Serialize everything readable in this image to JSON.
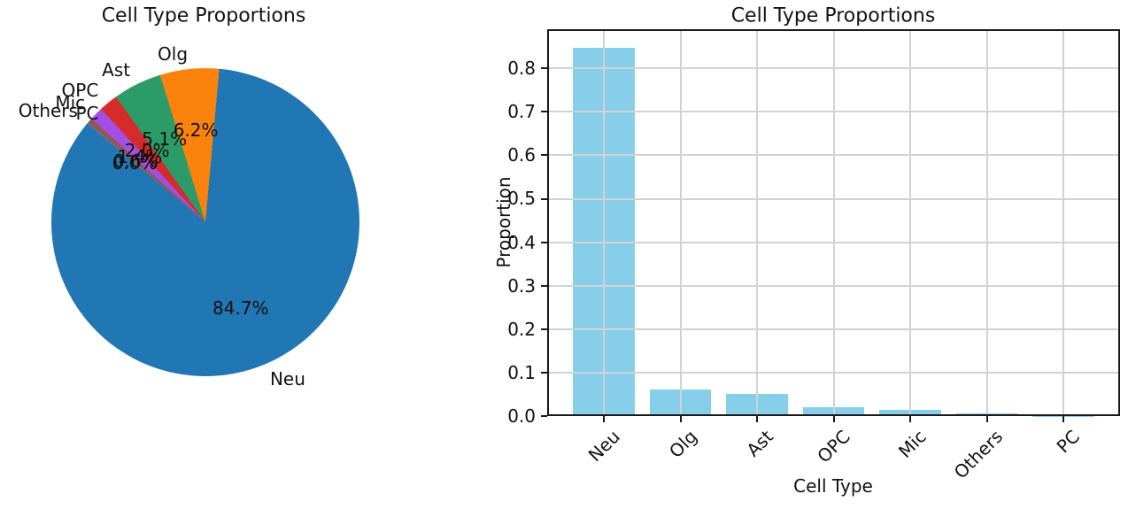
{
  "chart_data": [
    {
      "type": "pie",
      "title": "Cell Type Proportions",
      "labels": [
        "Neu",
        "Olg",
        "Ast",
        "OPC",
        "Mic",
        "Others",
        "PC"
      ],
      "values": [
        0.847,
        0.062,
        0.051,
        0.02,
        0.014,
        0.006,
        0.0003
      ],
      "pct_labels": [
        "84.7%",
        "6.2%",
        "5.1%",
        "2.0%",
        "1.4%",
        "0.6%",
        "0.0%"
      ],
      "colors": [
        "#2077b4",
        "#fb830d",
        "#2b9b68",
        "#d62b2b",
        "#a34fe3",
        "#8c5a50",
        "#e377c2"
      ],
      "startangle": 140,
      "direction": "counterclockwise",
      "autopct": "percent-one-decimal"
    },
    {
      "type": "bar",
      "title": "Cell Type Proportions",
      "xlabel": "Cell Type",
      "ylabel": "Proportion",
      "categories": [
        "Neu",
        "Olg",
        "Ast",
        "OPC",
        "Mic",
        "Others",
        "PC"
      ],
      "values": [
        0.847,
        0.062,
        0.051,
        0.02,
        0.014,
        0.006,
        0.0003
      ],
      "bar_color": "#87ceeb",
      "yticks": [
        0.0,
        0.1,
        0.2,
        0.3,
        0.4,
        0.5,
        0.6,
        0.7,
        0.8
      ],
      "ytick_labels": [
        "0.0",
        "0.1",
        "0.2",
        "0.3",
        "0.4",
        "0.5",
        "0.6",
        "0.7",
        "0.8"
      ],
      "ylim": [
        0,
        0.89
      ],
      "grid": true,
      "grid_color": "#d2d2d2",
      "xtick_rotation": 45
    }
  ]
}
